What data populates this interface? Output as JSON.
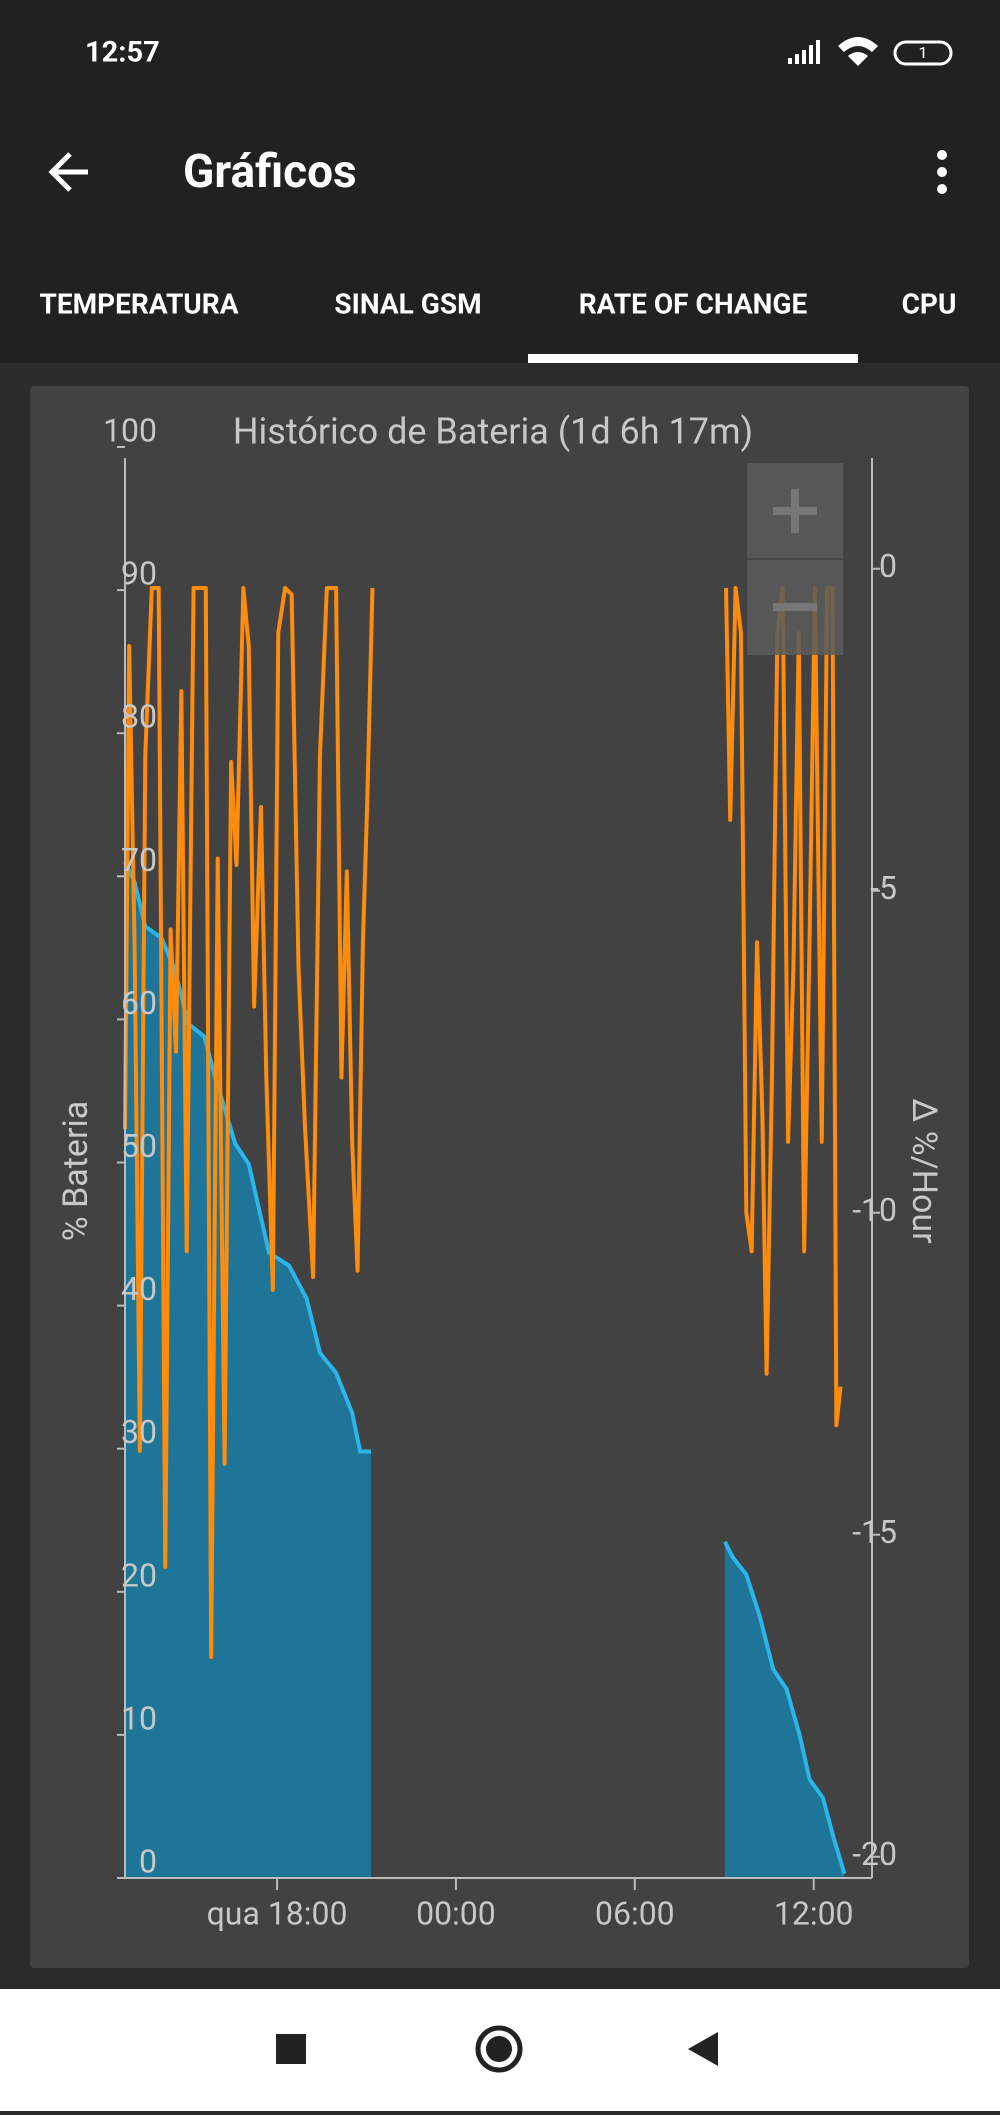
{
  "status_bar": {
    "time": "12:57"
  },
  "app_bar": {
    "title": "Gráficos"
  },
  "tabs": [
    "TEMPERATURA",
    "SINAL GSM",
    "RATE OF CHANGE",
    "CPU"
  ],
  "chart_data": {
    "type": "line",
    "title": "Histórico de Bateria (1d 6h 17m)",
    "y_label": "% Bateria",
    "y2_label": "Δ %/Hour",
    "xlim": [
      12.9,
      37.05
    ],
    "xticks": [
      {
        "value": 18,
        "label": "qua 18:00"
      },
      {
        "value": 24,
        "label": "00:00"
      },
      {
        "value": 30,
        "label": "06:00"
      },
      {
        "value": 36,
        "label": "12:00"
      }
    ],
    "ylim": [
      0,
      100
    ],
    "yticks": [
      0,
      10,
      20,
      30,
      40,
      50,
      60,
      70,
      80,
      90,
      100
    ],
    "y2lim": [
      -20.33,
      1.89
    ],
    "y2ticks": [
      0,
      -5,
      -10,
      -15,
      -20
    ],
    "series": [
      {
        "color": "#2bb5e8",
        "fill": "#1f7598",
        "x": [
          12.9,
          13.22,
          13.58,
          14.12,
          14.57,
          15.02,
          15.56,
          15.92,
          16.6,
          17.05,
          17.73,
          18.4,
          18.99,
          19.44,
          19.98,
          20.52,
          20.79,
          21.15,
          27,
          33.02,
          33.29,
          33.74,
          34.19,
          34.64,
          35.09,
          35.54,
          35.86,
          36.31,
          36.67,
          37.03
        ],
        "values": [
          71,
          69.6,
          66.5,
          65.7,
          63.5,
          59.7,
          58.8,
          56,
          51.3,
          49.9,
          43.7,
          42.8,
          40.5,
          36.7,
          35.3,
          32.5,
          29.8,
          29.8,
          null,
          23.5,
          22.4,
          21.2,
          18.3,
          14.6,
          13.2,
          9.9,
          6.9,
          5.6,
          2.8,
          0.3
        ]
      },
      {
        "color": "#ff8c0a",
        "axis": "y2",
        "x": [
          12.9,
          13.04,
          13.22,
          13.4,
          13.58,
          13.8,
          14.03,
          14.25,
          14.43,
          14.61,
          14.79,
          14.97,
          15.2,
          15.61,
          15.79,
          16.01,
          16.24,
          16.46,
          16.64,
          16.87,
          17.05,
          17.23,
          17.46,
          17.64,
          17.86,
          18.04,
          18.27,
          18.49,
          18.72,
          18.94,
          19.21,
          19.44,
          19.67,
          19.98,
          20.16,
          20.34,
          20.52,
          20.7,
          20.88,
          21.02,
          21.2,
          27,
          33.06,
          33.2,
          33.38,
          33.56,
          33.74,
          33.92,
          34.1,
          34.28,
          34.42,
          34.6,
          34.78,
          34.96,
          35.14,
          35.32,
          35.5,
          35.68,
          35.86,
          36.04,
          36.27,
          36.45,
          36.63,
          36.76,
          36.9
        ],
        "values": [
          -8.7,
          -1.2,
          -5.8,
          -13.7,
          -2.9,
          -0.3,
          -0.3,
          -15.5,
          -5.6,
          -7.5,
          -1.9,
          -10.6,
          -0.3,
          -0.3,
          -16.9,
          -4.5,
          -13.9,
          -3,
          -4.6,
          -0.3,
          -1.2,
          -6.8,
          -3.7,
          -7.9,
          -11.2,
          -1,
          -0.3,
          -0.4,
          -6.2,
          -8.7,
          -11,
          -2.9,
          -0.3,
          -0.3,
          -7.9,
          -4.7,
          -8.9,
          -10.9,
          -5.8,
          -3.7,
          -0.3,
          null,
          -0.3,
          -3.9,
          -0.3,
          -1,
          -10,
          -10.6,
          -5.8,
          -8.5,
          -12.5,
          -7.9,
          -1,
          -0.3,
          -8.9,
          -6.2,
          -1,
          -10.6,
          -5.8,
          -0.3,
          -8.9,
          -0.3,
          -0.3,
          -13.3,
          -12.7
        ]
      }
    ]
  }
}
